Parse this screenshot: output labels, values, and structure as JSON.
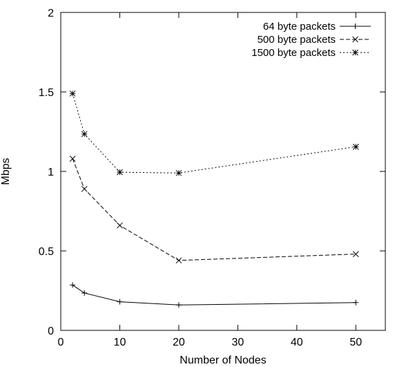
{
  "chart_data": {
    "type": "line",
    "title": "",
    "xlabel": "Number of Nodes",
    "ylabel": "Mbps",
    "xlim": [
      0,
      55
    ],
    "ylim": [
      0,
      2
    ],
    "x_ticks": [
      0,
      10,
      20,
      30,
      40,
      50
    ],
    "y_ticks": [
      0,
      0.5,
      1,
      1.5,
      2
    ],
    "x_tick_labels": [
      "0",
      "10",
      "20",
      "30",
      "40",
      "50"
    ],
    "y_tick_labels": [
      "0",
      "0.5",
      "1",
      "1.5",
      "2"
    ],
    "grid": false,
    "legend_position": "top-right",
    "series": [
      {
        "name": "64 byte packets",
        "marker": "plus",
        "line_style": "solid",
        "x": [
          2,
          4,
          10,
          20,
          50
        ],
        "y": [
          0.285,
          0.235,
          0.18,
          0.16,
          0.175
        ]
      },
      {
        "name": "500 byte packets",
        "marker": "cross",
        "line_style": "dashed",
        "x": [
          2,
          4,
          10,
          20,
          50
        ],
        "y": [
          1.08,
          0.89,
          0.66,
          0.44,
          0.48
        ]
      },
      {
        "name": "1500 byte packets",
        "marker": "star",
        "line_style": "dotted",
        "x": [
          2,
          4,
          10,
          20,
          50
        ],
        "y": [
          1.49,
          1.235,
          0.995,
          0.99,
          1.155
        ]
      }
    ]
  }
}
